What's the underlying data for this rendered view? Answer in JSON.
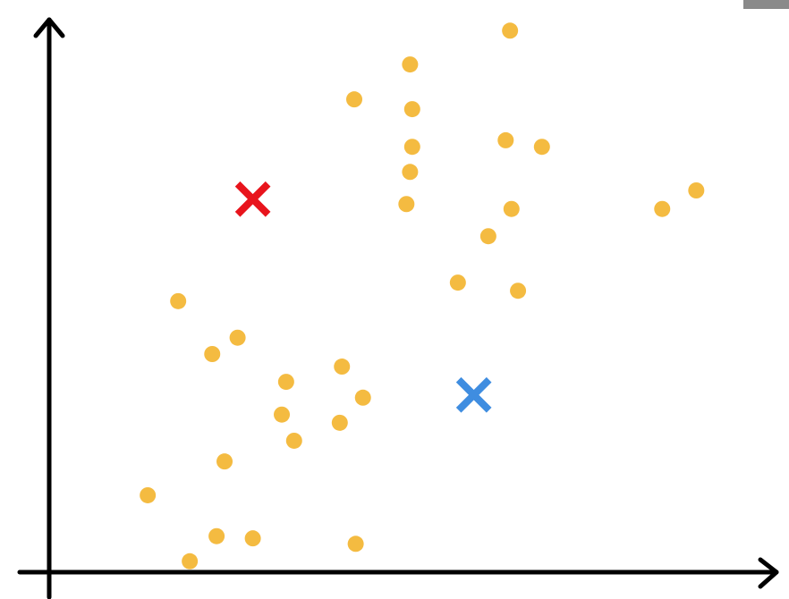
{
  "chart_data": {
    "type": "scatter",
    "xlim": [
      0,
      100
    ],
    "ylim": [
      0,
      100
    ],
    "points": {
      "color": "#f4bb41",
      "x": [
        63.6,
        49.8,
        42.1,
        50.1,
        63.0,
        68.0,
        50.1,
        49.8,
        49.3,
        63.8,
        84.6,
        89.3,
        60.6,
        56.4,
        64.7,
        17.8,
        26.0,
        22.5,
        40.4,
        32.7,
        43.3,
        32.1,
        40.1,
        33.8,
        24.2,
        13.6,
        23.1,
        28.1,
        42.3,
        19.4
      ],
      "y": [
        99.3,
        93.1,
        86.7,
        84.9,
        79.2,
        78.0,
        78.0,
        73.4,
        67.5,
        66.6,
        66.6,
        70.0,
        61.6,
        53.1,
        51.6,
        49.7,
        43.0,
        40.0,
        37.7,
        34.9,
        32.0,
        28.9,
        27.4,
        24.1,
        20.3,
        14.1,
        6.6,
        6.2,
        5.2,
        2.0
      ]
    },
    "centroids": {
      "colors": [
        "#e8141c",
        "#3f8de0"
      ],
      "x": [
        28.1,
        58.6
      ],
      "y": [
        68.4,
        32.5
      ]
    }
  }
}
